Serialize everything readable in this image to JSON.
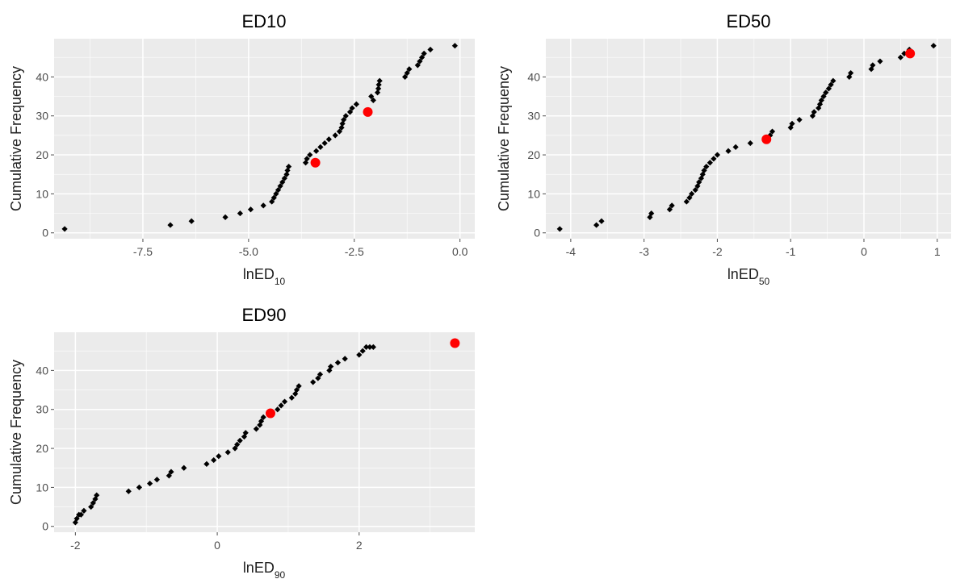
{
  "chart_data": [
    {
      "type": "scatter",
      "title": "ED10",
      "xlabel": "lnED",
      "xlabel_subscript": "10",
      "ylabel": "Cumulative Frequency",
      "xlim": [
        -9.6,
        0.35
      ],
      "ylim": [
        -1.5,
        49.8
      ],
      "xticks": [
        -7.5,
        -5.0,
        -2.5,
        0.0
      ],
      "xtick_labels": [
        "-7.5",
        "-5.0",
        "-2.5",
        "0.0"
      ],
      "xgrid_minor": [
        -8.75,
        -6.25,
        -3.75,
        -1.25
      ],
      "yticks": [
        0,
        10,
        20,
        30,
        40
      ],
      "ytick_labels": [
        "0",
        "10",
        "20",
        "30",
        "40"
      ],
      "ygrid_minor": [
        5,
        15,
        25,
        35,
        45
      ],
      "grid": true,
      "background": "#EBEBEB",
      "series": [
        {
          "color": "#000000",
          "marker": "diamond",
          "x": [
            -9.35,
            -6.85,
            -6.35,
            -5.55,
            -5.2,
            -4.95,
            -4.65,
            -4.45,
            -4.4,
            -4.35,
            -4.3,
            -4.25,
            -4.2,
            -4.15,
            -4.1,
            -4.08,
            -4.05,
            -3.65,
            -3.62,
            -3.55,
            -3.4,
            -3.3,
            -3.2,
            -3.1,
            -2.95,
            -2.85,
            -2.8,
            -2.78,
            -2.75,
            -2.7,
            -2.6,
            -2.55,
            -2.45,
            -2.05,
            -2.1,
            -1.95,
            -1.93,
            -1.92,
            -1.9,
            -1.3,
            -1.25,
            -1.2,
            -1.0,
            -0.95,
            -0.9,
            -0.85,
            -0.7,
            -0.12
          ],
          "y": [
            1,
            2,
            3,
            4,
            5,
            6,
            7,
            8,
            9,
            10,
            11,
            12,
            13,
            14,
            15,
            16,
            17,
            18,
            19,
            20,
            21,
            22,
            23,
            24,
            25,
            26,
            27,
            28,
            29,
            30,
            31,
            32,
            33,
            34,
            35,
            36,
            37,
            38,
            39,
            40,
            41,
            42,
            43,
            44,
            45,
            46,
            47,
            48
          ]
        },
        {
          "color": "#FF0000",
          "marker": "circle",
          "x": [
            -3.42,
            -2.18
          ],
          "y": [
            18,
            31
          ]
        }
      ]
    },
    {
      "type": "scatter",
      "title": "ED50",
      "xlabel": "lnED",
      "xlabel_subscript": "50",
      "ylabel": "Cumulative Frequency",
      "xlim": [
        -4.34,
        1.19
      ],
      "ylim": [
        -1.5,
        49.8
      ],
      "xticks": [
        -4,
        -3,
        -2,
        -1,
        0,
        1
      ],
      "xtick_labels": [
        "-4",
        "-3",
        "-2",
        "-1",
        "0",
        "1"
      ],
      "xgrid_minor": [
        -3.5,
        -2.5,
        -1.5,
        -0.5,
        0.5
      ],
      "yticks": [
        0,
        10,
        20,
        30,
        40
      ],
      "ytick_labels": [
        "0",
        "10",
        "20",
        "30",
        "40"
      ],
      "ygrid_minor": [
        5,
        15,
        25,
        35,
        45
      ],
      "grid": true,
      "background": "#EBEBEB",
      "series": [
        {
          "color": "#000000",
          "marker": "diamond",
          "x": [
            -4.15,
            -3.65,
            -3.58,
            -2.92,
            -2.9,
            -2.65,
            -2.62,
            -2.42,
            -2.38,
            -2.35,
            -2.3,
            -2.27,
            -2.25,
            -2.22,
            -2.2,
            -2.18,
            -2.15,
            -2.1,
            -2.05,
            -2.0,
            -1.85,
            -1.75,
            -1.55,
            -1.35,
            -1.28,
            -1.25,
            -1.0,
            -0.98,
            -0.88,
            -0.7,
            -0.68,
            -0.62,
            -0.6,
            -0.58,
            -0.55,
            -0.52,
            -0.48,
            -0.45,
            -0.42,
            -0.2,
            -0.18,
            0.1,
            0.12,
            0.22,
            0.5,
            0.55,
            0.62,
            0.95
          ],
          "y": [
            1,
            2,
            3,
            4,
            5,
            6,
            7,
            8,
            9,
            10,
            11,
            12,
            13,
            14,
            15,
            16,
            17,
            18,
            19,
            20,
            21,
            22,
            23,
            24,
            25,
            26,
            27,
            28,
            29,
            30,
            31,
            32,
            33,
            34,
            35,
            36,
            37,
            38,
            39,
            40,
            41,
            42,
            43,
            44,
            45,
            46,
            47,
            48
          ]
        },
        {
          "color": "#FF0000",
          "marker": "circle",
          "x": [
            -1.33,
            0.63
          ],
          "y": [
            24,
            46
          ]
        }
      ]
    },
    {
      "type": "scatter",
      "title": "ED90",
      "xlabel": "lnED",
      "xlabel_subscript": "90",
      "ylabel": "Cumulative Frequency",
      "xlim": [
        -2.3,
        3.63
      ],
      "ylim": [
        -1.5,
        49.8
      ],
      "xticks": [
        -2,
        0,
        2
      ],
      "xtick_labels": [
        "-2",
        "0",
        "2"
      ],
      "xgrid_minor": [
        -1,
        1,
        3
      ],
      "yticks": [
        0,
        10,
        20,
        30,
        40
      ],
      "ytick_labels": [
        "0",
        "10",
        "20",
        "30",
        "40"
      ],
      "ygrid_minor": [
        5,
        15,
        25,
        35,
        45
      ],
      "grid": true,
      "background": "#EBEBEB",
      "series": [
        {
          "color": "#000000",
          "marker": "diamond",
          "x": [
            -2.0,
            -1.98,
            -1.95,
            -1.92,
            -1.88,
            -1.78,
            -1.75,
            -1.72,
            -1.7,
            -1.25,
            -1.1,
            -0.95,
            -0.85,
            -0.68,
            -0.65,
            -0.47,
            -0.15,
            -0.05,
            0.02,
            0.15,
            0.25,
            0.28,
            0.32,
            0.38,
            0.4,
            0.55,
            0.6,
            0.62,
            0.65,
            0.85,
            0.9,
            0.95,
            1.05,
            1.1,
            1.12,
            1.15,
            1.35,
            1.42,
            1.45,
            1.58,
            1.6,
            1.7,
            1.8,
            2.0,
            2.05,
            2.1,
            2.15,
            2.2
          ],
          "y": [
            1,
            2,
            3,
            3,
            4,
            5,
            6,
            7,
            8,
            9,
            10,
            11,
            12,
            13,
            14,
            15,
            16,
            17,
            18,
            19,
            20,
            21,
            22,
            23,
            24,
            25,
            26,
            27,
            28,
            30,
            31,
            32,
            33,
            34,
            35,
            36,
            37,
            38,
            39,
            40,
            41,
            42,
            43,
            44,
            45,
            46,
            46,
            46
          ]
        },
        {
          "color": "#FF0000",
          "marker": "circle",
          "x": [
            0.75,
            3.35
          ],
          "y": [
            29,
            47
          ]
        }
      ]
    }
  ]
}
